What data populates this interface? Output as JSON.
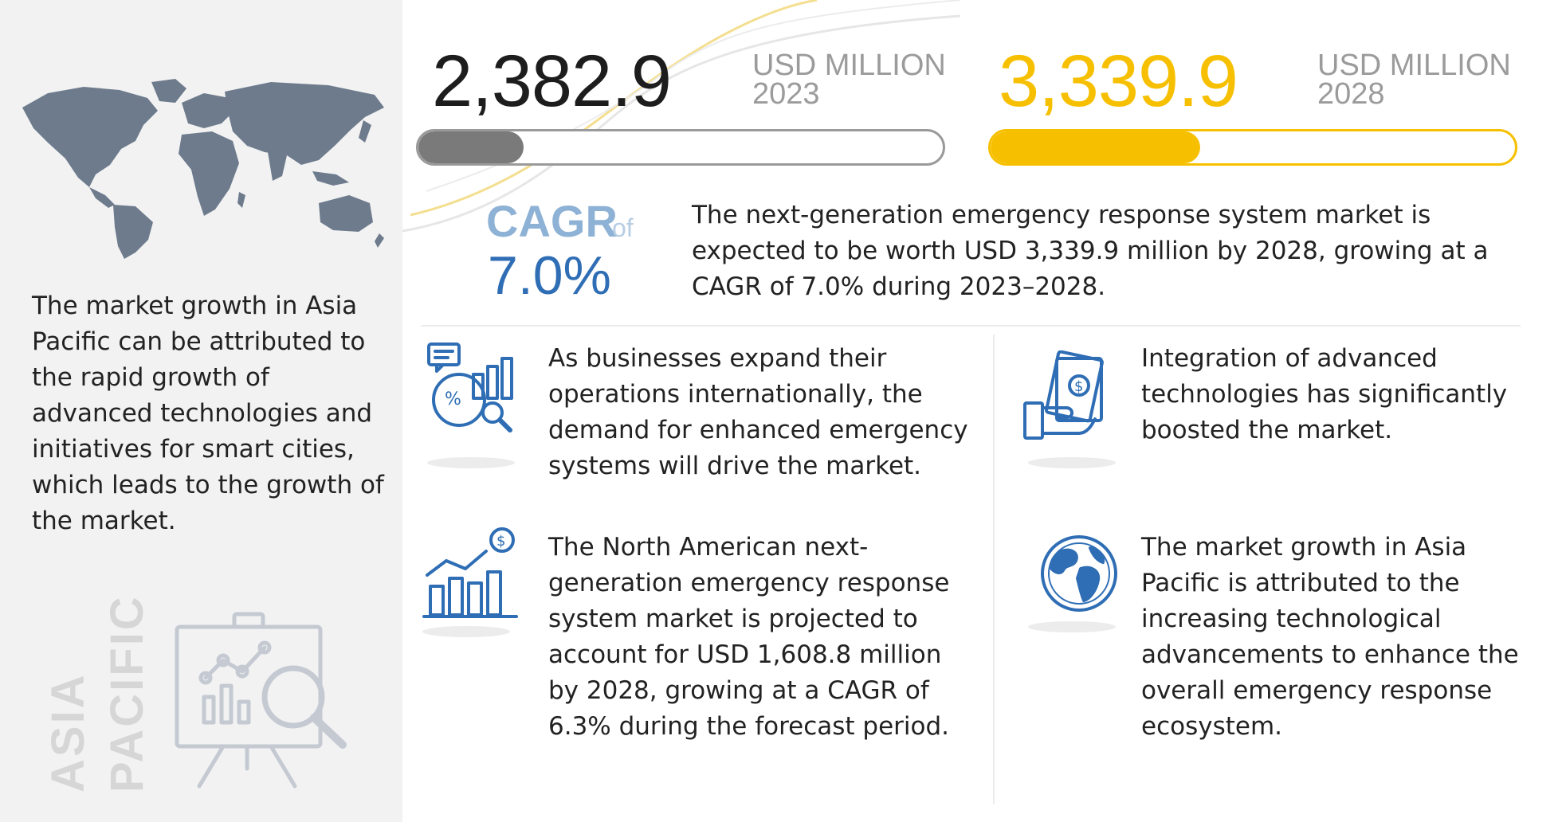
{
  "region": {
    "description": "The market growth in Asia Pacific can be attributed to the rapid growth of advanced technologies and initiatives for smart cities, which leads to the growth of the market.",
    "vertical_label_line1": "ASIA",
    "vertical_label_line2": "PACIFIC"
  },
  "market_2023": {
    "value": "2,382.9",
    "unit": "USD MILLION",
    "year": "2023",
    "bar_fill_fraction": 0.2
  },
  "market_2028": {
    "value": "3,339.9",
    "unit": "USD MILLION",
    "year": "2028",
    "bar_fill_fraction": 0.4
  },
  "cagr": {
    "label": "CAGR",
    "of": "of",
    "value": "7.0%"
  },
  "summary": "The next-generation emergency response system market is expected to be worth USD 3,339.9 million by 2028, growing at a CAGR of 7.0% during 2023–2028.",
  "facts": [
    {
      "icon": "analytics-chart-icon",
      "text": "As businesses expand their operations internationally, the demand for enhanced emergency systems will drive the market."
    },
    {
      "icon": "money-hand-icon",
      "text": "Integration of advanced technologies has significantly boosted the market."
    },
    {
      "icon": "growth-bar-dollar-icon",
      "text": "The North American next-generation emergency response system market is projected to account for USD 1,608.8 million by 2028, growing at a CAGR of 6.3% during the forecast period."
    },
    {
      "icon": "globe-icon",
      "text": "The market growth in Asia Pacific is attributed to the increasing technological advancements to enhance the overall emergency response ecosystem."
    }
  ],
  "colors": {
    "accent_yellow": "#f6c000",
    "accent_blue": "#2f6eb5",
    "bar_gray": "#7a7a7a",
    "map_gray": "#6d7b8d",
    "panel_bg": "#f2f2f2"
  }
}
